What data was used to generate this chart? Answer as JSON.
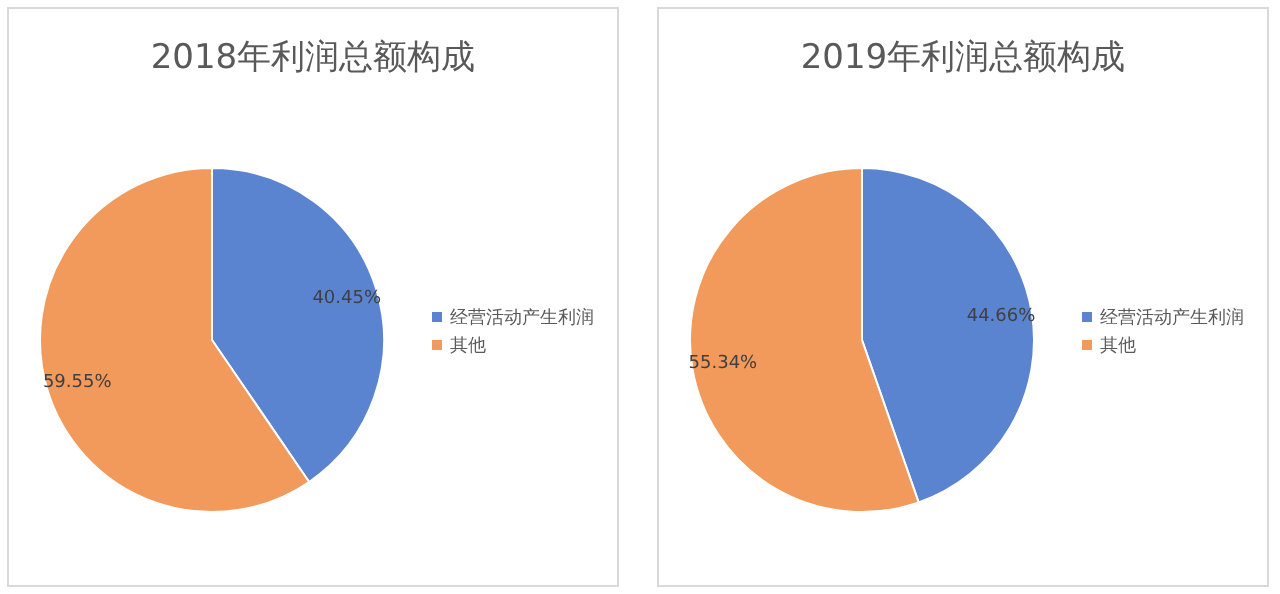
{
  "chart_data": [
    {
      "type": "pie",
      "title": "2018年利润总额构成",
      "categories": [
        "经营活动产生利润",
        "其他"
      ],
      "values": [
        40.45,
        59.55
      ],
      "colors": [
        "#5b84d0",
        "#f19a5c"
      ],
      "value_labels": [
        "40.45%",
        "59.55%"
      ],
      "legend": "right"
    },
    {
      "type": "pie",
      "title": "2019年利润总额构成",
      "categories": [
        "经营活动产生利润",
        "其他"
      ],
      "values": [
        44.66,
        55.34
      ],
      "colors": [
        "#5b84d0",
        "#f19a5c"
      ],
      "value_labels": [
        "44.66%",
        "55.34%"
      ],
      "legend": "right"
    }
  ]
}
